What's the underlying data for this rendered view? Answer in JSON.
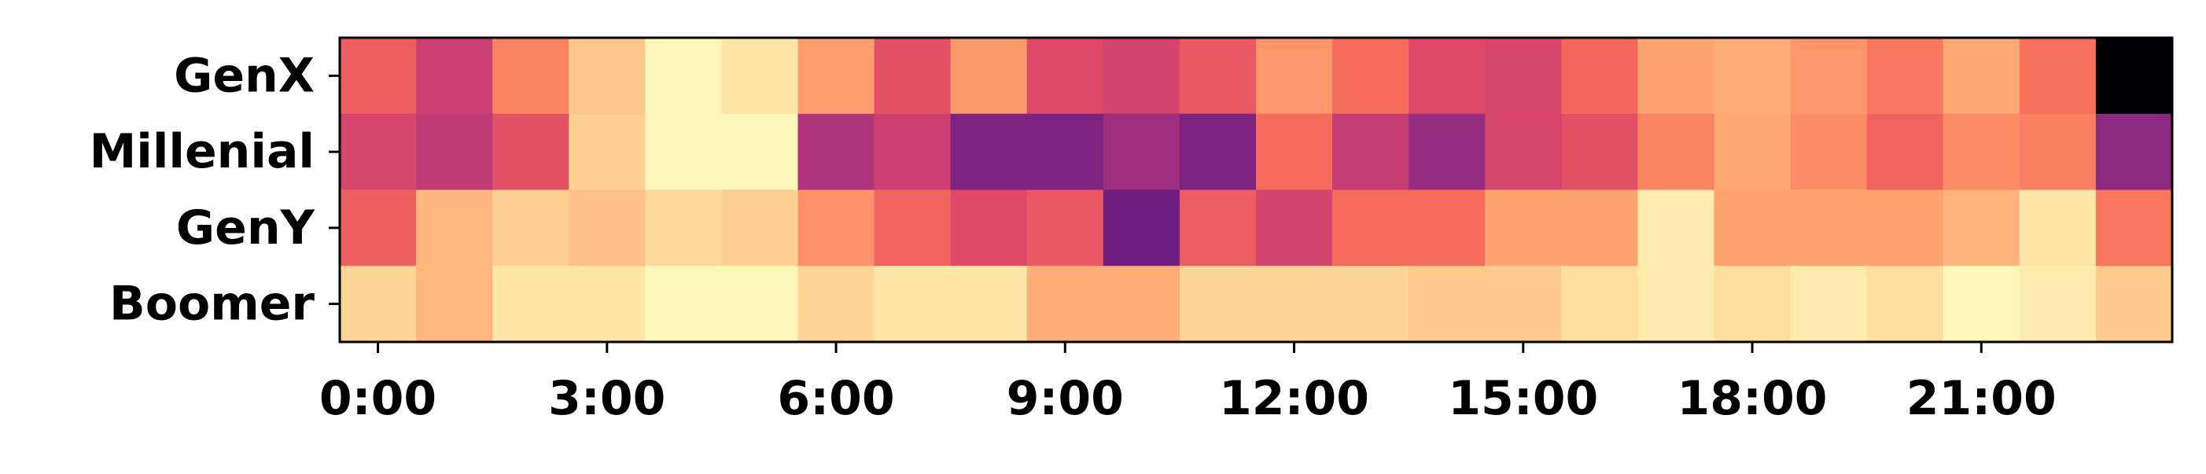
{
  "chart_data": {
    "type": "heatmap",
    "title": "",
    "xlabel": "",
    "ylabel": "",
    "colormap": "magma",
    "rows": [
      "GenX",
      "Millenial",
      "GenY",
      "Boomer"
    ],
    "columns": [
      "0:00",
      "1:00",
      "2:00",
      "3:00",
      "4:00",
      "5:00",
      "6:00",
      "7:00",
      "8:00",
      "9:00",
      "10:00",
      "11:00",
      "12:00",
      "13:00",
      "14:00",
      "15:00",
      "16:00",
      "17:00",
      "18:00",
      "19:00",
      "20:00",
      "21:00",
      "22:00",
      "23:00"
    ],
    "x_tick_labels": [
      "0:00",
      "3:00",
      "6:00",
      "9:00",
      "12:00",
      "15:00",
      "18:00",
      "21:00"
    ],
    "x_tick_positions": [
      0,
      3,
      6,
      9,
      12,
      15,
      18,
      21
    ],
    "values": [
      [
        0.66,
        0.55,
        0.74,
        0.88,
        0.985,
        0.95,
        0.8,
        0.62,
        0.79,
        0.6,
        0.57,
        0.64,
        0.78,
        0.69,
        0.6,
        0.58,
        0.68,
        0.81,
        0.83,
        0.78,
        0.72,
        0.82,
        0.7,
        0.0
      ],
      [
        0.58,
        0.52,
        0.62,
        0.9,
        0.985,
        0.985,
        0.48,
        0.55,
        0.36,
        0.36,
        0.44,
        0.36,
        0.69,
        0.53,
        0.42,
        0.58,
        0.62,
        0.74,
        0.82,
        0.76,
        0.67,
        0.76,
        0.73,
        0.4
      ],
      [
        0.66,
        0.85,
        0.9,
        0.87,
        0.92,
        0.9,
        0.77,
        0.67,
        0.6,
        0.64,
        0.33,
        0.65,
        0.57,
        0.69,
        0.69,
        0.81,
        0.81,
        0.96,
        0.81,
        0.81,
        0.81,
        0.84,
        0.95,
        0.71
      ],
      [
        0.91,
        0.85,
        0.95,
        0.95,
        0.985,
        0.985,
        0.91,
        0.95,
        0.95,
        0.83,
        0.83,
        0.91,
        0.91,
        0.91,
        0.89,
        0.89,
        0.93,
        0.96,
        0.93,
        0.96,
        0.93,
        0.985,
        0.96,
        0.89
      ]
    ],
    "vmin": 0,
    "vmax": 1,
    "grid": false,
    "legend": "none"
  }
}
